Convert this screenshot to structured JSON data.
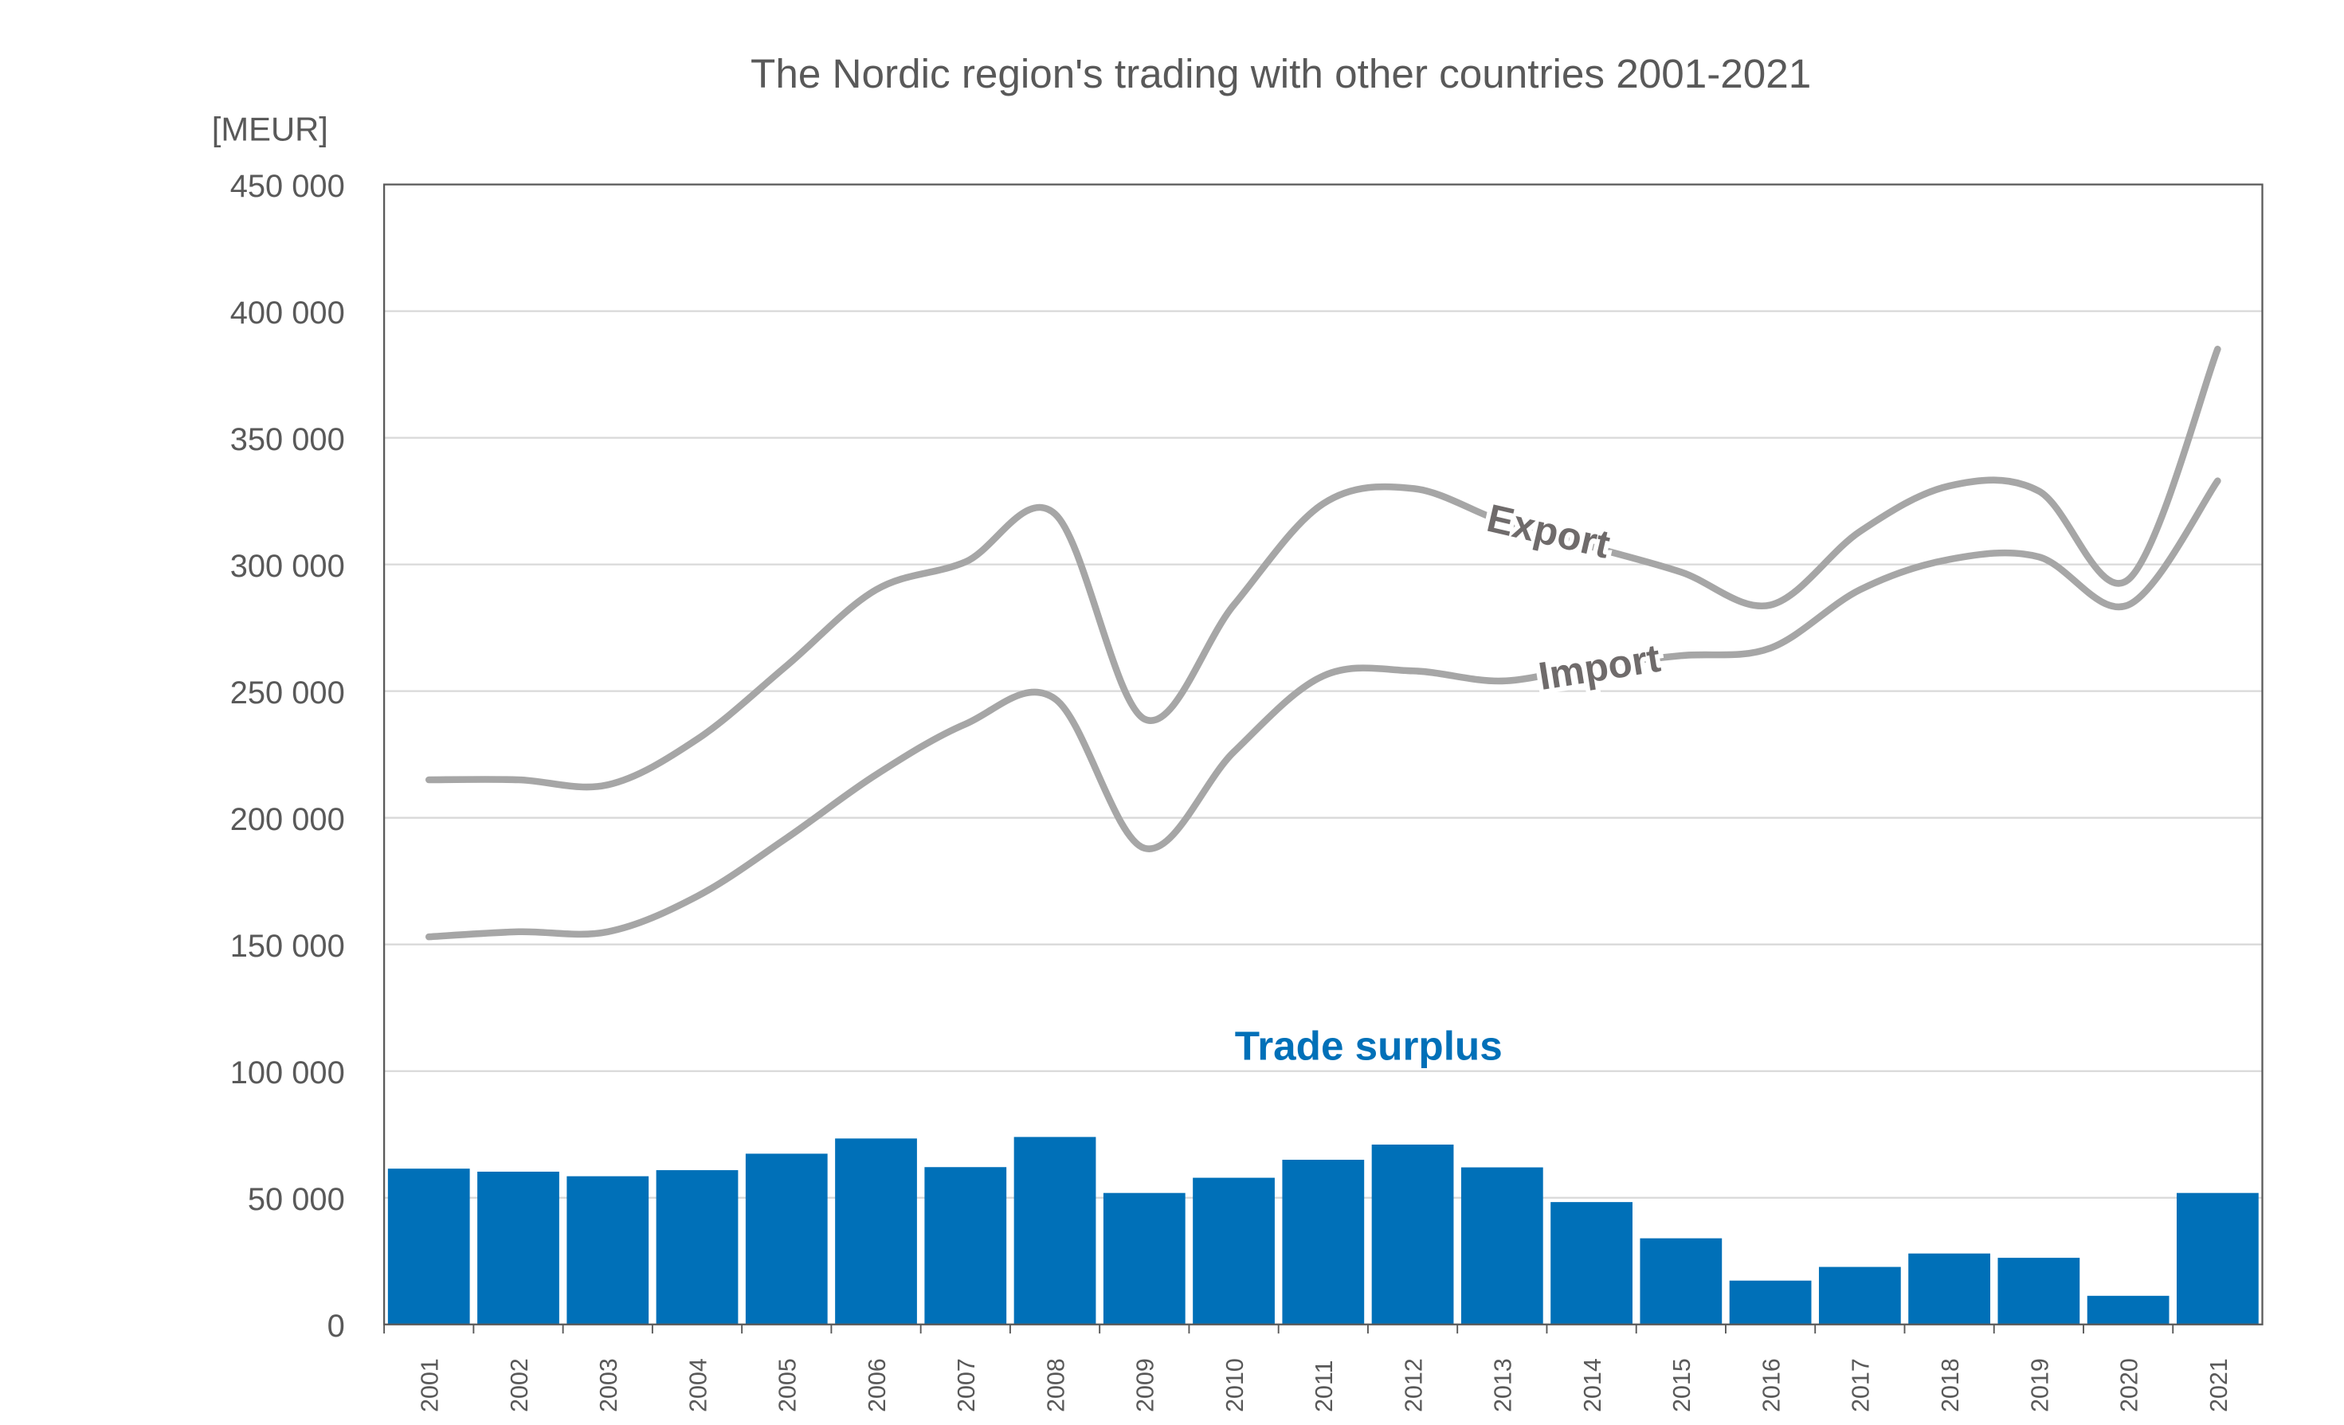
{
  "chart_data": {
    "type": "bar+line",
    "title": "The Nordic region's trading with other countries 2001-2021",
    "ylabel": "[MEUR]",
    "xlabel": "",
    "ylim": [
      0,
      450000
    ],
    "yticks": [
      0,
      50000,
      100000,
      150000,
      200000,
      250000,
      300000,
      350000,
      400000,
      450000
    ],
    "ytick_labels": [
      "0",
      "50 000",
      "100 000",
      "150 000",
      "200 000",
      "250 000",
      "300 000",
      "350 000",
      "400 000",
      "450 000"
    ],
    "grid": true,
    "categories": [
      "2001",
      "2002",
      "2003",
      "2004",
      "2005",
      "2006",
      "2007",
      "2008",
      "2009",
      "2010",
      "2011",
      "2012",
      "2013",
      "2014",
      "2015",
      "2016",
      "2017",
      "2018",
      "2019",
      "2020",
      "2021"
    ],
    "series": [
      {
        "name": "Export",
        "type": "line",
        "color": "#A6A6A6",
        "values": [
          215000,
          215000,
          213000,
          231000,
          260000,
          290000,
          301000,
          320000,
          239000,
          284000,
          324000,
          330000,
          317000,
          307000,
          297000,
          284000,
          313000,
          331000,
          329000,
          294000,
          385000
        ]
      },
      {
        "name": "Import",
        "type": "line",
        "color": "#A6A6A6",
        "values": [
          153000,
          155000,
          155000,
          169000,
          192000,
          217000,
          237000,
          247000,
          188000,
          226000,
          256000,
          258000,
          254000,
          260000,
          264000,
          267000,
          290000,
          302000,
          303000,
          284000,
          333000
        ]
      },
      {
        "name": "Trade surplus",
        "type": "bar",
        "color": "#0070B8",
        "values": [
          61500,
          60300,
          58500,
          60900,
          67400,
          73400,
          62100,
          74000,
          51900,
          57900,
          65000,
          71000,
          62000,
          48300,
          34000,
          17300,
          22700,
          28000,
          26300,
          11300,
          51900
        ]
      }
    ],
    "annotations": [
      "Export",
      "Import",
      "Trade surplus"
    ]
  }
}
